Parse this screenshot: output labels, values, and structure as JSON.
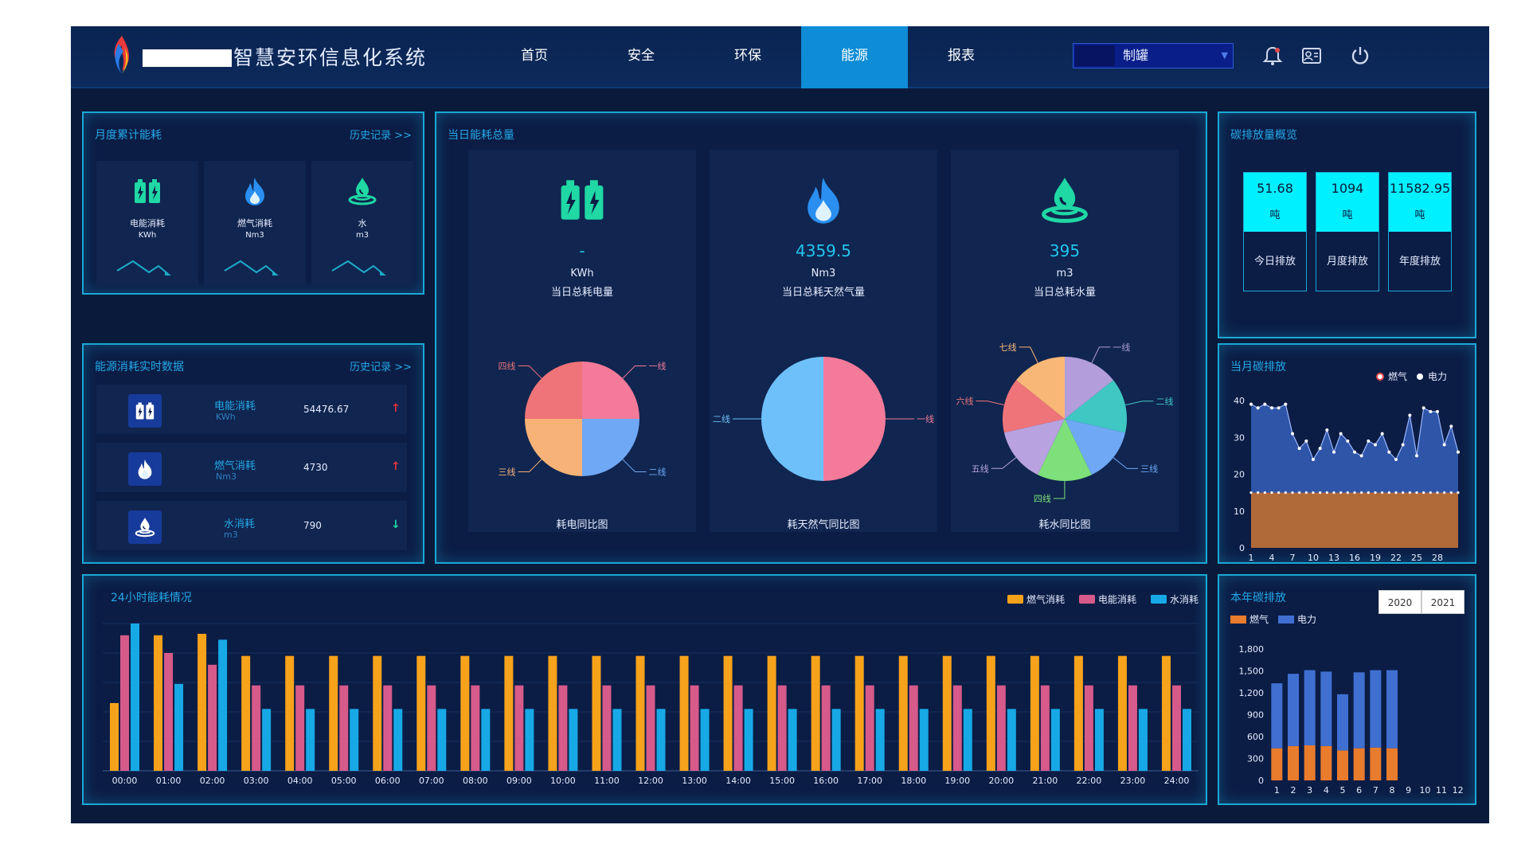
{
  "header": {
    "app_title": "智慧安环信息化系统",
    "nav": [
      {
        "label": "首页"
      },
      {
        "label": "安全"
      },
      {
        "label": "环保"
      },
      {
        "label": "能源",
        "active": true
      },
      {
        "label": "报表"
      }
    ],
    "plant_selector": {
      "value": "制罐"
    },
    "icons": [
      "bell-icon",
      "id-card-icon",
      "power-icon"
    ]
  },
  "monthly": {
    "title": "月度累计能耗",
    "history": "历史记录 >>",
    "cards": [
      {
        "icon": "battery-icon",
        "name": "电能消耗",
        "unit": "KWh"
      },
      {
        "icon": "flame-icon",
        "name": "燃气消耗",
        "unit": "Nm3"
      },
      {
        "icon": "water-drop-icon",
        "name": "水",
        "unit": "m3"
      }
    ]
  },
  "realtime": {
    "title": "能源消耗实时数据",
    "history": "历史记录 >>",
    "rows": [
      {
        "icon": "battery-icon",
        "name": "电能消耗",
        "unit": "KWh",
        "value": "54476.67",
        "trend": "up"
      },
      {
        "icon": "flame-icon",
        "name": "燃气消耗",
        "unit": "Nm3",
        "value": "4730",
        "trend": "up"
      },
      {
        "icon": "water-drop-icon",
        "name": "水消耗",
        "unit": "m3",
        "value": "790",
        "trend": "down"
      }
    ]
  },
  "daily": {
    "title": "当日能耗总量",
    "cards": [
      {
        "icon": "battery-icon",
        "value": "-",
        "unit": "KWh",
        "label": "当日总耗电量",
        "pie_caption": "耗电同比图",
        "pie": [
          {
            "name": "一线",
            "value": 25,
            "color": "#f47a9a"
          },
          {
            "name": "二线",
            "value": 25,
            "color": "#6fa8f5"
          },
          {
            "name": "三线",
            "value": 25,
            "color": "#f6b277"
          },
          {
            "name": "四线",
            "value": 25,
            "color": "#ef7479"
          }
        ]
      },
      {
        "icon": "flame-icon",
        "value": "4359.5",
        "unit": "Nm3",
        "label": "当日总耗天然气量",
        "pie_caption": "耗天然气同比图",
        "pie": [
          {
            "name": "一线",
            "value": 50,
            "color": "#f47a9a"
          },
          {
            "name": "二线",
            "value": 50,
            "color": "#6ec0fb"
          }
        ]
      },
      {
        "icon": "water-drop-icon",
        "value": "395",
        "unit": "m3",
        "label": "当日总耗水量",
        "pie_caption": "耗水同比图",
        "pie": [
          {
            "name": "一线",
            "value": 14.29,
            "color": "#b39ddb"
          },
          {
            "name": "二线",
            "value": 14.29,
            "color": "#3fc7c3"
          },
          {
            "name": "三线",
            "value": 14.29,
            "color": "#6fa8f5"
          },
          {
            "name": "四线",
            "value": 14.29,
            "color": "#7de07a"
          },
          {
            "name": "五线",
            "value": 14.29,
            "color": "#b8a2e0"
          },
          {
            "name": "六线",
            "value": 14.29,
            "color": "#ef7479"
          },
          {
            "name": "七线",
            "value": 14.26,
            "color": "#f8b777"
          }
        ]
      }
    ]
  },
  "carbon": {
    "title": "碳排放量概览",
    "stats": [
      {
        "value": "51.68",
        "unit": "吨",
        "label": "今日排放"
      },
      {
        "value": "1094",
        "unit": "吨",
        "label": "月度排放"
      },
      {
        "value": "11582.95",
        "unit": "吨",
        "label": "年度排放"
      }
    ]
  },
  "monthly_carbon": {
    "title": "当月碳排放",
    "chart_data": {
      "type": "area",
      "x": [
        1,
        2,
        3,
        4,
        5,
        6,
        7,
        8,
        9,
        10,
        11,
        12,
        13,
        14,
        15,
        16,
        17,
        18,
        19,
        20,
        21,
        22,
        23,
        24,
        25,
        26,
        27,
        28,
        29,
        30,
        31
      ],
      "xticks": [
        "1",
        "4",
        "7",
        "10",
        "13",
        "16",
        "19",
        "22",
        "25",
        "28"
      ],
      "ylim": [
        0,
        40
      ],
      "yticks": [
        "0",
        "10",
        "20",
        "30",
        "40"
      ],
      "series": [
        {
          "name": "燃气",
          "color": "#b06a3a",
          "values": [
            15,
            15,
            15,
            15,
            15,
            15,
            15,
            15,
            15,
            15,
            15,
            15,
            15,
            15,
            15,
            15,
            15,
            15,
            15,
            15,
            15,
            15,
            15,
            15,
            15,
            15,
            15,
            15,
            15,
            15,
            15
          ]
        },
        {
          "name": "电力",
          "color": "#2e55a8",
          "values": [
            39,
            38,
            39,
            38,
            38,
            39,
            31,
            27,
            29,
            24,
            27,
            32,
            26,
            31,
            29,
            26,
            25,
            29,
            28,
            31,
            26,
            24,
            28,
            36,
            25,
            38,
            37,
            37,
            28,
            33,
            26
          ]
        }
      ],
      "legend": "top-right"
    }
  },
  "hourly": {
    "title": "24小时能耗情况",
    "chart_data": {
      "type": "bar",
      "categories": [
        "00:00",
        "01:00",
        "02:00",
        "03:00",
        "04:00",
        "05:00",
        "06:00",
        "07:00",
        "08:00",
        "09:00",
        "10:00",
        "11:00",
        "12:00",
        "13:00",
        "14:00",
        "15:00",
        "16:00",
        "17:00",
        "18:00",
        "19:00",
        "20:00",
        "21:00",
        "22:00",
        "23:00",
        "24:00"
      ],
      "ylim": [
        0,
        100
      ],
      "series": [
        {
          "name": "燃气消耗",
          "color": "#f7a21b",
          "values": [
            46,
            92,
            93,
            78,
            78,
            78,
            78,
            78,
            78,
            78,
            78,
            78,
            78,
            78,
            78,
            78,
            78,
            78,
            78,
            78,
            78,
            78,
            78,
            78,
            78
          ]
        },
        {
          "name": "电能消耗",
          "color": "#d65a8a",
          "values": [
            92,
            80,
            72,
            58,
            58,
            58,
            58,
            58,
            58,
            58,
            58,
            58,
            58,
            58,
            58,
            58,
            58,
            58,
            58,
            58,
            58,
            58,
            58,
            58,
            58
          ]
        },
        {
          "name": "水消耗",
          "color": "#17a9e6",
          "values": [
            100,
            59,
            89,
            42,
            42,
            42,
            42,
            42,
            42,
            42,
            42,
            42,
            42,
            42,
            42,
            42,
            42,
            42,
            42,
            42,
            42,
            42,
            42,
            42,
            42
          ]
        }
      ],
      "legend": "top-right"
    }
  },
  "yearly_carbon": {
    "title": "本年碳排放",
    "years": [
      "2020",
      "2021"
    ],
    "chart_data": {
      "type": "bar",
      "categories": [
        "1",
        "2",
        "3",
        "4",
        "5",
        "6",
        "7",
        "8",
        "9",
        "10",
        "11",
        "12"
      ],
      "ylim": [
        0,
        1800
      ],
      "yticks": [
        "0",
        "300",
        "600",
        "900",
        "1,200",
        "1,500",
        "1,800"
      ],
      "series": [
        {
          "name": "燃气",
          "color": "#e97b2c",
          "values": [
            440,
            470,
            480,
            470,
            410,
            440,
            450,
            440,
            0,
            0,
            0,
            0
          ]
        },
        {
          "name": "电力",
          "color": "#3f6fd1",
          "values": [
            890,
            990,
            1030,
            1020,
            770,
            1040,
            1060,
            1070,
            0,
            0,
            0,
            0
          ]
        }
      ],
      "legend": "top-left"
    }
  }
}
